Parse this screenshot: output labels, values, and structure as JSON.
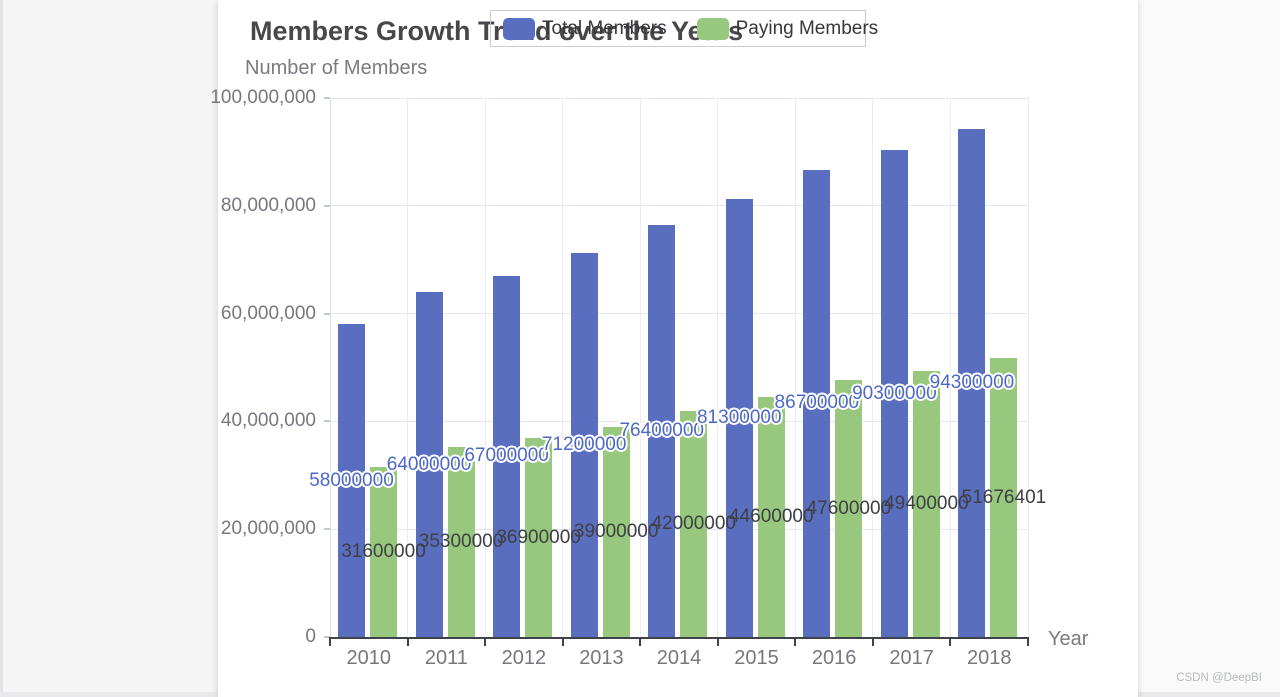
{
  "page": {
    "watermark": "CSDN @DeepBI"
  },
  "chart_data": {
    "type": "bar",
    "title": "Members Growth Trend over the Years",
    "xlabel": "Year",
    "ylabel": "Number of Members",
    "categories": [
      "2010",
      "2011",
      "2012",
      "2013",
      "2014",
      "2015",
      "2016",
      "2017",
      "2018"
    ],
    "series": [
      {
        "name": "Total Members",
        "color": "#5a6ec0",
        "label_color": "#4d68c8",
        "values": [
          58000000,
          64000000,
          67000000,
          71200000,
          76400000,
          81300000,
          86700000,
          90300000,
          94300000
        ]
      },
      {
        "name": "Paying Members",
        "color": "#98c87d",
        "label_color": "#3e3f44",
        "values": [
          31600000,
          35300000,
          36900000,
          39000000,
          42000000,
          44600000,
          47600000,
          49400000,
          51676401
        ]
      }
    ],
    "ylim": [
      0,
      100000000
    ],
    "ytick_step": 20000000,
    "ytick_labels": [
      "0",
      "20,000,000",
      "40,000,000",
      "60,000,000",
      "80,000,000",
      "100,000,000"
    ],
    "grid": true,
    "legend_position": "top-center",
    "value_label_position": "inside-middle"
  }
}
